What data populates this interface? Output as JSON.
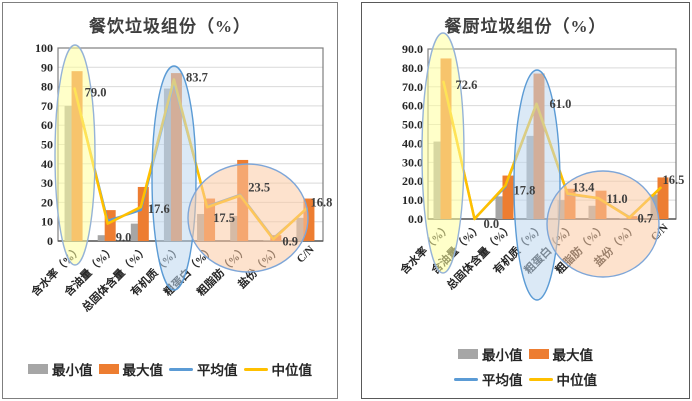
{
  "chart_data": [
    {
      "id": "catering",
      "type": "bar",
      "title": "餐饮垃圾组份（%）",
      "categories": [
        "含水率（%）",
        "含油量（%）",
        "总固体含量（%）",
        "有机质（%）",
        "粗蛋白（%）",
        "粗脂肪（%）",
        "盐份（%）",
        "C/N"
      ],
      "y_axis": {
        "min": 0,
        "max": 100,
        "step": 10,
        "tick_labels": [
          "0",
          "10",
          "20",
          "30",
          "40",
          "50",
          "60",
          "70",
          "80",
          "90",
          "100"
        ]
      },
      "series": [
        {
          "name": "最小值",
          "kind": "bar",
          "color": "#A6A6A6",
          "values": [
            70,
            3,
            9,
            79,
            14,
            13,
            0.5,
            12
          ]
        },
        {
          "name": "最大值",
          "kind": "bar",
          "color": "#ED7D31",
          "values": [
            88,
            16,
            28,
            87,
            22,
            42,
            3,
            22
          ]
        },
        {
          "name": "平均值",
          "kind": "line",
          "color": "#5B9BD5",
          "values": [
            79,
            10.5,
            16,
            82,
            18,
            24,
            1.5,
            16.5
          ]
        },
        {
          "name": "中位值",
          "kind": "line",
          "color": "#FFC000",
          "values": [
            79.0,
            9.0,
            17.6,
            83.7,
            17.5,
            23.5,
            0.9,
            16.8
          ],
          "point_labels": [
            "79.0",
            "9.0",
            "17.6",
            "83.7",
            "17.5",
            "23.5",
            "0.9",
            "16.8"
          ]
        }
      ],
      "legend_rows": [
        [
          "最小值",
          "最大值",
          "平均值",
          "中位值"
        ]
      ],
      "highlights": [
        {
          "shape": "ellipse",
          "over_categories": [
            0
          ],
          "fill": "#FFFF9C",
          "stroke": "#95B3D7"
        },
        {
          "shape": "ellipse",
          "over_categories": [
            3
          ],
          "fill": "#BDD7EE",
          "stroke": "#5B9BD5"
        },
        {
          "shape": "ellipse",
          "over_categories": [
            4,
            5,
            6
          ],
          "fill": "#FBCBA4",
          "stroke": "#7EA6D8"
        }
      ],
      "grid": true,
      "legend_position": "bottom"
    },
    {
      "id": "kitchen",
      "type": "bar",
      "title": "餐厨垃圾组份（%）",
      "categories": [
        "含水率（%）",
        "含油量（%）",
        "总固体含量（%）",
        "有机质（%）",
        "粗蛋白（%）",
        "粗脂肪（%）",
        "盐份（%）",
        "C/N"
      ],
      "y_axis": {
        "min": 0,
        "max": 90,
        "step": 10,
        "tick_labels": [
          "0.0",
          "10.0",
          "20.0",
          "30.0",
          "40.0",
          "50.0",
          "60.0",
          "70.0",
          "80.0",
          "90.0"
        ]
      },
      "series": [
        {
          "name": "最小值",
          "kind": "bar",
          "color": "#A6A6A6",
          "values": [
            41,
            0,
            12,
            44,
            10,
            7,
            0.3,
            13
          ]
        },
        {
          "name": "最大值",
          "kind": "bar",
          "color": "#ED7D31",
          "values": [
            85,
            0,
            23,
            77,
            16,
            15,
            1.5,
            22
          ]
        },
        {
          "name": "平均值",
          "kind": "line",
          "color": "#5B9BD5",
          "values": [
            72,
            0.3,
            17,
            61,
            13,
            11,
            1,
            16.3
          ]
        },
        {
          "name": "中位值",
          "kind": "line",
          "color": "#FFC000",
          "values": [
            72.6,
            0.0,
            17.8,
            61.0,
            13.4,
            11.0,
            0.7,
            16.5
          ],
          "point_labels": [
            "72.6",
            "0.0",
            "17.8",
            "61.0",
            "13.4",
            "11.0",
            "0.7",
            "16.5"
          ]
        }
      ],
      "legend_rows": [
        [
          "最小值",
          "最大值"
        ],
        [
          "平均值",
          "中位值"
        ]
      ],
      "highlights": [
        {
          "shape": "ellipse",
          "over_categories": [
            0
          ],
          "fill": "#FFFF9C",
          "stroke": "#95B3D7"
        },
        {
          "shape": "ellipse",
          "over_categories": [
            3
          ],
          "fill": "#BDD7EE",
          "stroke": "#5B9BD5"
        },
        {
          "shape": "ellipse",
          "over_categories": [
            4,
            5,
            6
          ],
          "fill": "#FBCBA4",
          "stroke": "#7EA6D8"
        }
      ],
      "grid": true,
      "legend_position": "bottom"
    }
  ]
}
